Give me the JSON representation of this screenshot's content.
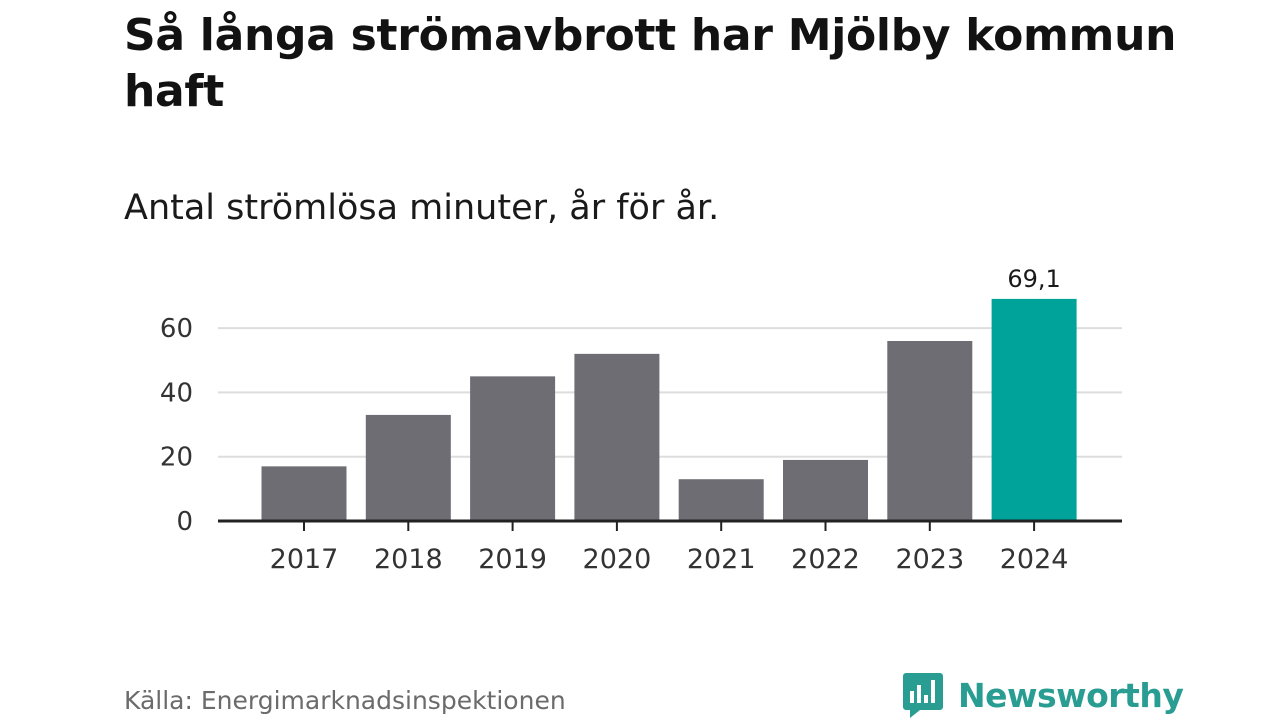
{
  "header": {
    "title": "Så långa strömavbrott har Mjölby kommun haft",
    "subtitle": "Antal strömlösa minuter, år för år."
  },
  "chart_data": {
    "type": "bar",
    "title": "Så långa strömavbrott har Mjölby kommun haft",
    "subtitle": "Antal strömlösa minuter, år för år.",
    "categories": [
      "2017",
      "2018",
      "2019",
      "2020",
      "2021",
      "2022",
      "2023",
      "2024"
    ],
    "values": [
      17,
      33,
      45,
      52,
      13,
      19,
      56,
      69.1
    ],
    "highlight_index": 7,
    "data_labels": [
      {
        "index": 7,
        "text": "69,1"
      }
    ],
    "xlabel": "",
    "ylabel": "",
    "ylim": [
      0,
      70
    ],
    "yticks": [
      0,
      20,
      40,
      60
    ],
    "grid": true,
    "colors": {
      "bar": "#6e6d73",
      "highlight": "#00a39a",
      "grid": "#dddddd",
      "axis": "#222222"
    }
  },
  "footer": {
    "source": "Källa: Energimarknadsinspektionen",
    "brand": "Newsworthy",
    "brand_icon": "bar-chart-speech-bubble-icon",
    "brand_color": "#2a9d92"
  }
}
